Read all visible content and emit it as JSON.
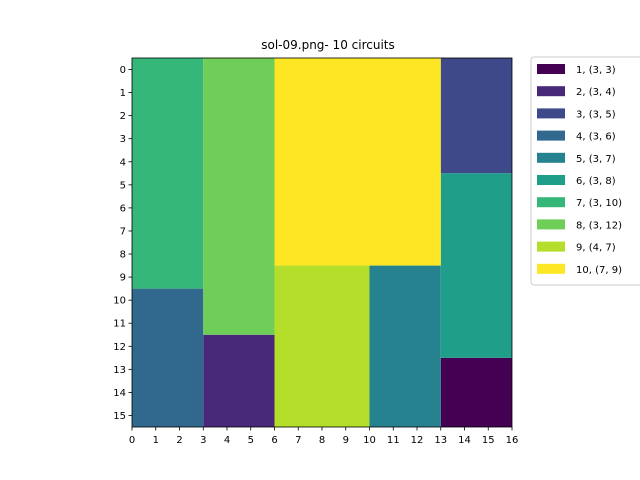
{
  "chart_data": {
    "type": "heatmap",
    "title": "sol-09.png- 10 circuits",
    "xlim": [
      0,
      16
    ],
    "ylim": [
      16,
      0
    ],
    "x_ticks": [
      "0",
      "1",
      "2",
      "3",
      "4",
      "5",
      "6",
      "7",
      "8",
      "9",
      "10",
      "11",
      "12",
      "13",
      "14",
      "15",
      "16"
    ],
    "y_ticks": [
      "0",
      "1",
      "2",
      "3",
      "4",
      "5",
      "6",
      "7",
      "8",
      "9",
      "10",
      "11",
      "12",
      "13",
      "14",
      "15"
    ],
    "grid": false,
    "legend_position": "outside-top-right",
    "circuits": [
      {
        "label": "1, (3, 3)",
        "x": 13,
        "y": 13,
        "w": 3,
        "h": 3,
        "color": "#440154"
      },
      {
        "label": "2, (3, 4)",
        "x": 3,
        "y": 12,
        "w": 3,
        "h": 4,
        "color": "#482878"
      },
      {
        "label": "3, (3, 5)",
        "x": 13,
        "y": 0,
        "w": 3,
        "h": 5,
        "color": "#3e4989"
      },
      {
        "label": "4, (3, 6)",
        "x": 0,
        "y": 10,
        "w": 3,
        "h": 6,
        "color": "#31688e"
      },
      {
        "label": "5, (3, 7)",
        "x": 10,
        "y": 9,
        "w": 3,
        "h": 7,
        "color": "#26828e"
      },
      {
        "label": "6, (3, 8)",
        "x": 13,
        "y": 5,
        "w": 3,
        "h": 8,
        "color": "#1f9e89"
      },
      {
        "label": "7, (3, 10)",
        "x": 0,
        "y": 0,
        "w": 3,
        "h": 10,
        "color": "#35b779"
      },
      {
        "label": "8, (3, 12)",
        "x": 3,
        "y": 0,
        "w": 3,
        "h": 12,
        "color": "#6ece58"
      },
      {
        "label": "9, (4, 7)",
        "x": 6,
        "y": 9,
        "w": 4,
        "h": 7,
        "color": "#b5de2b"
      },
      {
        "label": "10, (7, 9)",
        "x": 6,
        "y": 0,
        "w": 7,
        "h": 9,
        "color": "#fde725"
      }
    ]
  }
}
